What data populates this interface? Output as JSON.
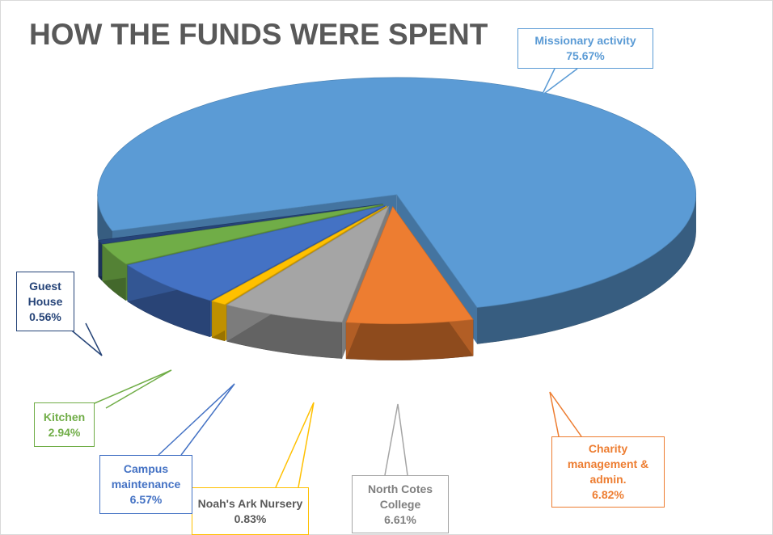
{
  "chart_data": {
    "type": "pie",
    "title": "HOW THE FUNDS WERE SPENT",
    "categories": [
      "Missionary activity",
      "Charity management & admin.",
      "North Cotes College",
      "Noah's Ark Nursery",
      "Campus maintenance",
      "Kitchen",
      "Guest House"
    ],
    "values": [
      75.67,
      6.82,
      6.61,
      0.83,
      6.57,
      2.94,
      0.56
    ],
    "value_labels": [
      "75.67%",
      "6.82%",
      "6.61%",
      "0.83%",
      "6.57%",
      "2.94%",
      "0.56%"
    ],
    "colors": [
      "#5b9bd5",
      "#ed7d31",
      "#a5a5a5",
      "#ffc000",
      "#4472c4",
      "#70ad47",
      "#264478"
    ]
  }
}
